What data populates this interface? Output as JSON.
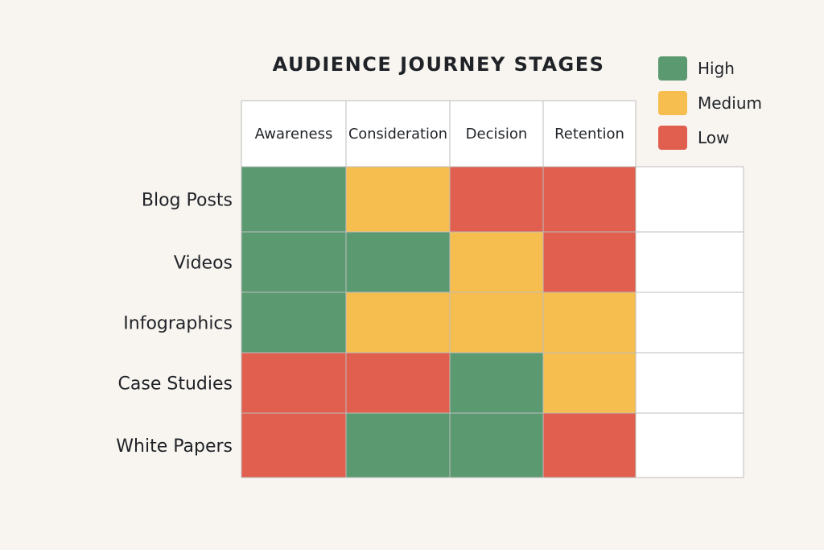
{
  "chart_data": {
    "type": "heatmap",
    "title": "AUDIENCE JOURNEY STAGES",
    "columns": [
      "Awareness",
      "Consideration",
      "Decision",
      "Retention",
      ""
    ],
    "rows": [
      "Blog Posts",
      "Videos",
      "Infographics",
      "Case Studies",
      "White Papers"
    ],
    "values": [
      [
        "High",
        "Medium",
        "Low",
        "Low",
        ""
      ],
      [
        "High",
        "High",
        "Medium",
        "Low",
        ""
      ],
      [
        "High",
        "Medium",
        "Medium",
        "Medium",
        ""
      ],
      [
        "Low",
        "Low",
        "High",
        "Medium",
        ""
      ],
      [
        "Low",
        "High",
        "High",
        "Low",
        ""
      ]
    ],
    "legend": [
      {
        "label": "High",
        "color": "#5b9a71"
      },
      {
        "label": "Medium",
        "color": "#f6bd4f"
      },
      {
        "label": "Low",
        "color": "#e05f4e"
      }
    ]
  }
}
